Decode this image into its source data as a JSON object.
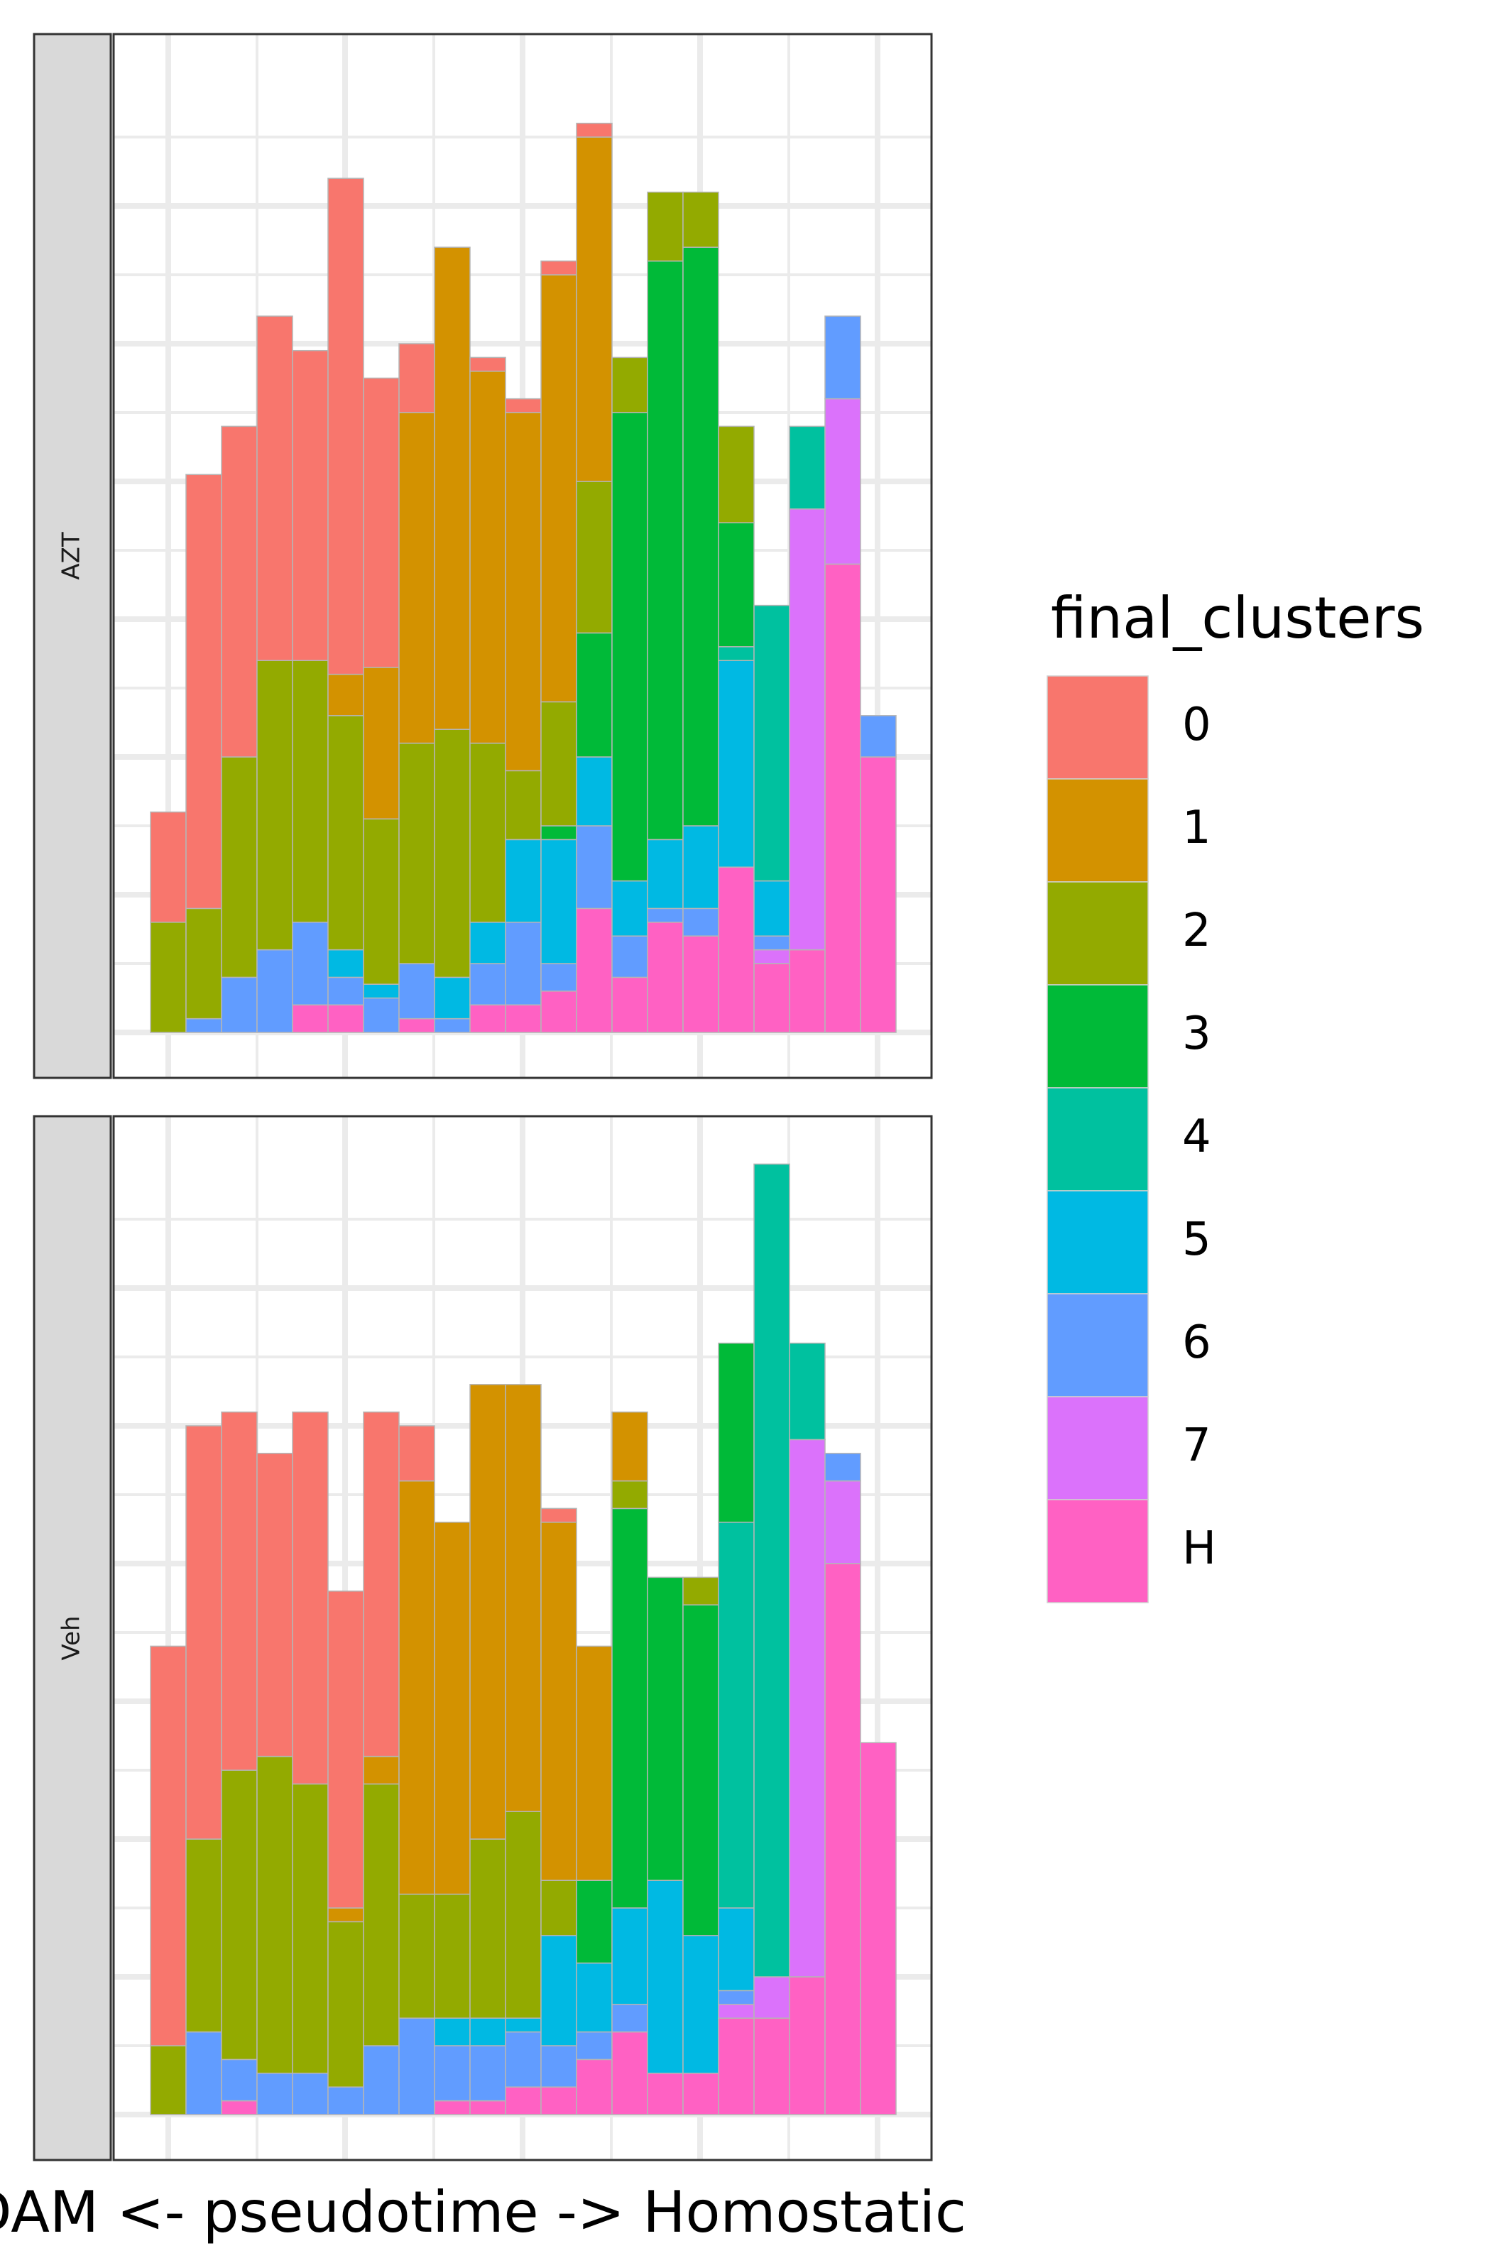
{
  "chart_data": {
    "type": "bar",
    "stacked": true,
    "xlabel": "DAM <- pseudotime -> Homostatic",
    "ylabel": "",
    "grid": true,
    "legend": {
      "title": "final_clusters",
      "placement": "right",
      "entries": [
        {
          "label": "0",
          "color": "#F8766D"
        },
        {
          "label": "1",
          "color": "#D39200"
        },
        {
          "label": "2",
          "color": "#93AA00"
        },
        {
          "label": "3",
          "color": "#00BA38"
        },
        {
          "label": "4",
          "color": "#00C19F"
        },
        {
          "label": "5",
          "color": "#00B9E3"
        },
        {
          "label": "6",
          "color": "#619CFF"
        },
        {
          "label": "7",
          "color": "#DB72FB"
        },
        {
          "label": "H",
          "color": "#FF61C3"
        }
      ]
    },
    "stack_order_bottom_to_top": [
      "H",
      "7",
      "6",
      "5",
      "4",
      "3",
      "2",
      "1",
      "0"
    ],
    "bin_count": 21,
    "ylim": [
      0,
      13.7
    ],
    "panels": [
      {
        "strip_label": "AZT",
        "bins": [
          {
            "2": 1.6,
            "0": 1.6
          },
          {
            "6": 0.2,
            "2": 1.6,
            "0": 6.3
          },
          {
            "6": 0.8,
            "2": 3.2,
            "0": 4.8
          },
          {
            "6": 1.2,
            "2": 4.2,
            "0": 5.0
          },
          {
            "H": 0.4,
            "6": 1.2,
            "2": 3.8,
            "0": 4.5
          },
          {
            "H": 0.4,
            "6": 0.4,
            "5": 0.4,
            "2": 3.4,
            "1": 0.6,
            "0": 7.2
          },
          {
            "6": 0.5,
            "5": 0.2,
            "2": 2.4,
            "1": 2.2,
            "0": 4.2
          },
          {
            "H": 0.2,
            "6": 0.8,
            "2": 3.2,
            "1": 4.8,
            "0": 1.0
          },
          {
            "6": 0.2,
            "5": 0.6,
            "2": 3.6,
            "1": 7.0
          },
          {
            "H": 0.4,
            "6": 0.6,
            "5": 0.6,
            "2": 2.6,
            "1": 5.4,
            "0": 0.2
          },
          {
            "H": 0.4,
            "6": 1.2,
            "5": 1.2,
            "2": 1.0,
            "1": 5.2,
            "0": 0.2
          },
          {
            "H": 0.6,
            "6": 0.4,
            "5": 1.8,
            "3": 0.2,
            "2": 1.8,
            "1": 6.2,
            "0": 0.2
          },
          {
            "H": 1.8,
            "6": 1.2,
            "5": 1.0,
            "3": 1.8,
            "2": 2.2,
            "1": 5.0,
            "0": 0.2
          },
          {
            "H": 0.8,
            "6": 0.6,
            "5": 0.8,
            "3": 6.8,
            "2": 0.8
          },
          {
            "H": 1.6,
            "6": 0.2,
            "5": 1.0,
            "3": 8.4,
            "2": 1.0
          },
          {
            "H": 1.4,
            "6": 0.4,
            "5": 1.2,
            "3": 8.4,
            "2": 0.8
          },
          {
            "H": 2.4,
            "5": 3.0,
            "4": 0.2,
            "3": 1.8,
            "2": 1.4
          },
          {
            "H": 1.0,
            "7": 0.2,
            "6": 0.2,
            "5": 0.8,
            "4": 4.0
          },
          {
            "H": 1.2,
            "7": 6.4,
            "4": 1.2
          },
          {
            "H": 6.8,
            "7": 2.4,
            "6": 1.2
          },
          {
            "H": 4.0,
            "6": 0.6
          }
        ]
      },
      {
        "strip_label": "Veh",
        "bins": [
          {
            "2": 1.0,
            "0": 5.8
          },
          {
            "6": 1.2,
            "2": 2.8,
            "0": 6.0
          },
          {
            "H": 0.2,
            "6": 0.6,
            "2": 4.2,
            "0": 5.2
          },
          {
            "6": 0.6,
            "2": 4.6,
            "0": 4.4
          },
          {
            "6": 0.6,
            "2": 4.2,
            "0": 5.4
          },
          {
            "6": 0.4,
            "2": 2.4,
            "1": 0.2,
            "0": 4.6
          },
          {
            "6": 1.0,
            "2": 3.8,
            "1": 0.4,
            "0": 5.0
          },
          {
            "6": 1.4,
            "2": 1.8,
            "1": 6.0,
            "0": 0.8
          },
          {
            "H": 0.2,
            "6": 0.8,
            "5": 0.4,
            "2": 1.8,
            "1": 5.4
          },
          {
            "H": 0.2,
            "6": 0.8,
            "5": 0.4,
            "2": 2.6,
            "1": 6.6
          },
          {
            "H": 0.4,
            "6": 0.8,
            "5": 0.2,
            "2": 3.0,
            "1": 6.2
          },
          {
            "H": 0.4,
            "6": 0.6,
            "5": 1.6,
            "2": 0.8,
            "1": 5.2,
            "0": 0.2
          },
          {
            "H": 0.8,
            "6": 0.4,
            "5": 1.0,
            "3": 1.2,
            "1": 3.4
          },
          {
            "H": 1.2,
            "6": 0.4,
            "5": 1.4,
            "3": 5.8,
            "2": 0.4,
            "1": 1.0
          },
          {
            "H": 0.6,
            "5": 2.8,
            "3": 4.4
          },
          {
            "H": 0.6,
            "5": 2.0,
            "3": 4.8,
            "2": 0.4
          },
          {
            "H": 1.4,
            "7": 0.2,
            "6": 0.2,
            "5": 1.2,
            "4": 5.6,
            "3": 2.6
          },
          {
            "H": 1.4,
            "7": 0.6,
            "4": 11.8
          },
          {
            "H": 2.0,
            "7": 7.8,
            "4": 1.4
          },
          {
            "H": 8.0,
            "7": 1.2,
            "6": 0.4
          },
          {
            "H": 5.4
          }
        ]
      }
    ]
  }
}
